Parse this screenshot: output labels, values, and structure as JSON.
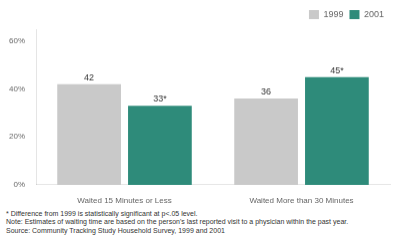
{
  "chart_data": {
    "type": "bar",
    "categories": [
      "Waited 15 Minutes or Less",
      "Waited More than 30 Minutes"
    ],
    "series": [
      {
        "name": "1999",
        "color": "#c9c9c9",
        "values": [
          42,
          36
        ],
        "value_labels": [
          "42",
          "36"
        ]
      },
      {
        "name": "2001",
        "color": "#2e8b7a",
        "values": [
          33,
          45
        ],
        "value_labels": [
          "33*",
          "45*"
        ]
      }
    ],
    "ylim": [
      0,
      65
    ],
    "yticks": [
      {
        "value": 0,
        "label": "0%"
      },
      {
        "value": 20,
        "label": "20%"
      },
      {
        "value": 40,
        "label": "40%"
      },
      {
        "value": 60,
        "label": "60%"
      }
    ],
    "grid": false,
    "legend": "upper right",
    "data_labels": true,
    "annotations": [
      "* Difference from 1999 is statistically significant at p<.05 level.",
      "Note: Estimates of waiting time are based on the person's last reported visit to a physician within the past year.",
      "Source: Community Tracking Study Household Survey, 1999 and 2001"
    ]
  }
}
